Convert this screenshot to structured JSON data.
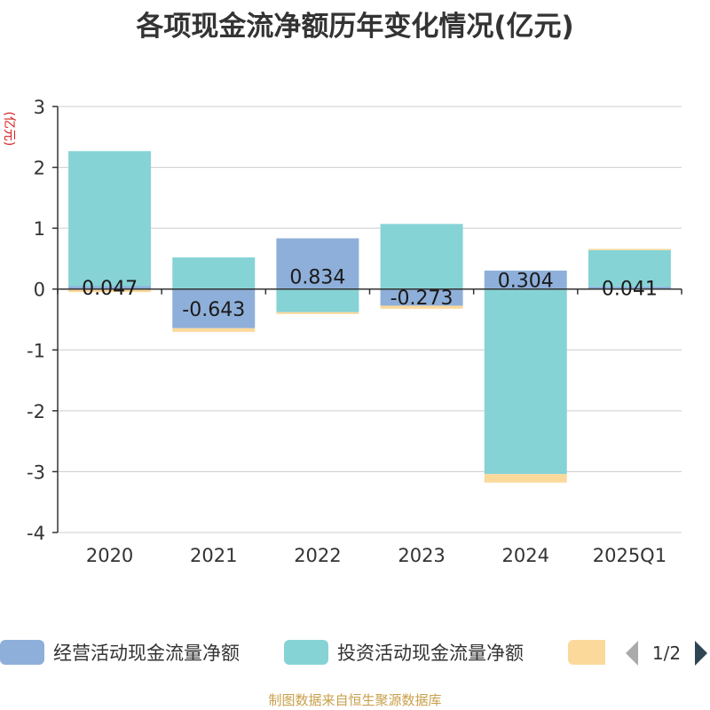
{
  "chart_data": {
    "type": "bar",
    "stacked": true,
    "title": "各项现金流净额历年变化情况(亿元)",
    "ylabel": "(亿元)",
    "ylim": [
      -4,
      3
    ],
    "yticks": [
      "3",
      "2",
      "1",
      "0",
      "-1",
      "-2",
      "-3",
      "-4"
    ],
    "grid": true,
    "legend_position": "bottom",
    "categories": [
      "2020",
      "2021",
      "2022",
      "2023",
      "2024",
      "2025Q1"
    ],
    "series": [
      {
        "name": "经营活动现金流量净额",
        "color": "#8eafd9",
        "values": [
          0.047,
          -0.643,
          0.834,
          -0.273,
          0.304,
          0.041
        ],
        "labels": [
          "0.047",
          "-0.643",
          "0.834",
          "-0.273",
          "0.304",
          "0.041"
        ]
      },
      {
        "name": "投资活动现金流量净额",
        "color": "#86d3d6",
        "values": [
          2.22,
          0.52,
          -0.38,
          1.07,
          -3.04,
          0.6
        ]
      },
      {
        "name": "",
        "color": "#fbd99b",
        "values": [
          -0.05,
          -0.06,
          -0.03,
          -0.05,
          -0.14,
          0.02
        ]
      }
    ]
  },
  "legend": {
    "page_indicator": "1/2"
  },
  "footer": {
    "source": "制图数据来自恒生聚源数据库"
  }
}
